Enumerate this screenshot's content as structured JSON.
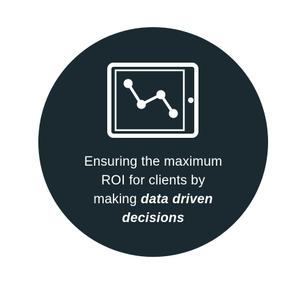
{
  "colors": {
    "background": "#ffffff",
    "circle": "#1b2a30",
    "foreground": "#ffffff"
  },
  "icon": {
    "name": "tablet-line-chart-icon"
  },
  "caption": {
    "line1": "Ensuring the maximum",
    "line2": "ROI for clients by",
    "line3_prefix": "making ",
    "line3_emphasis": "data driven",
    "line4_emphasis": "decisions"
  }
}
